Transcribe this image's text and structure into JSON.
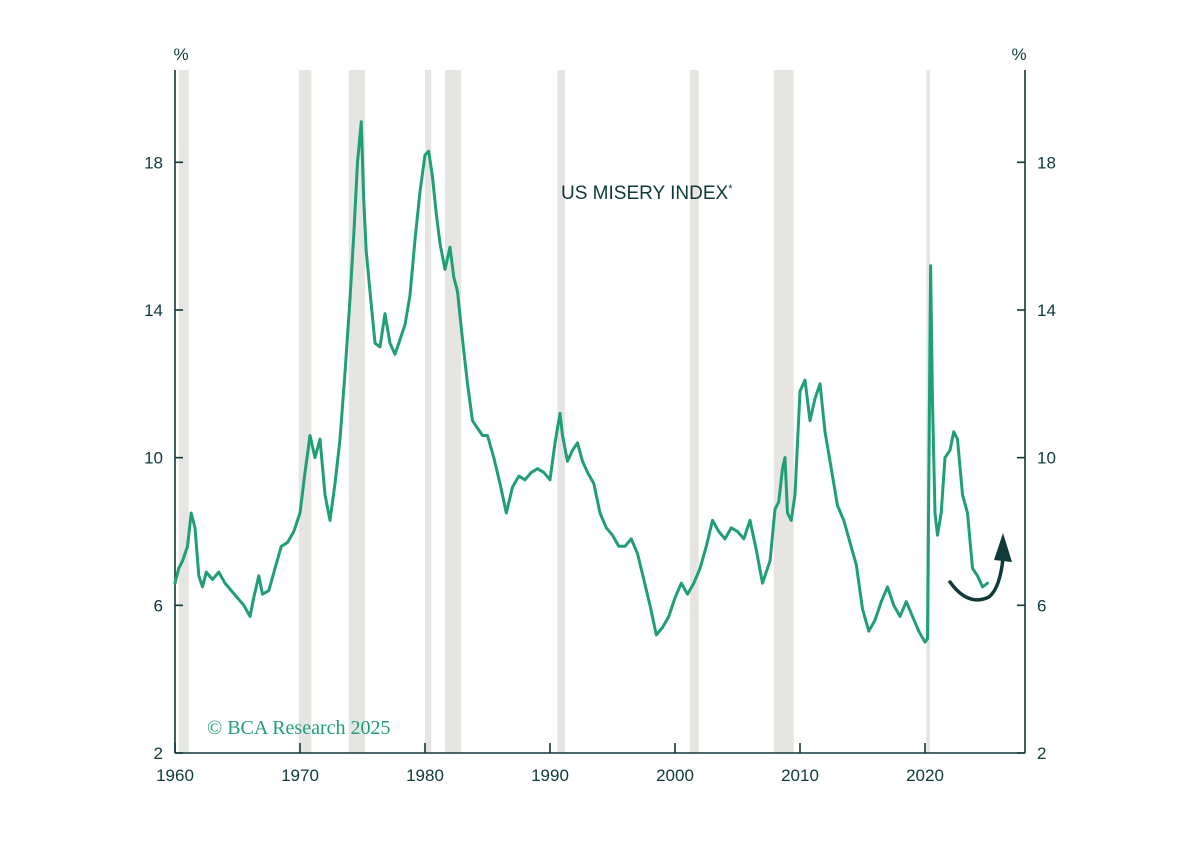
{
  "chart_data": {
    "type": "line",
    "title": "US MISERY INDEX",
    "title_marker": "*",
    "credit": "© BCA Research 2025",
    "left_unit": "%",
    "right_unit": "%",
    "x_ticks": [
      "1960",
      "1970",
      "1980",
      "1990",
      "2000",
      "2010",
      "2020"
    ],
    "y_ticks": [
      "2",
      "6",
      "10",
      "14",
      "18"
    ],
    "xlim": [
      1960,
      2028
    ],
    "ylim": [
      2,
      20.5
    ],
    "grid": false,
    "line_color": "#1f9f78",
    "recession_color": "#e6e5e1",
    "axis_color": "#0e3a3a",
    "arrow_color": "#0e3a3a",
    "recessions": [
      [
        1960.3,
        1961.1
      ],
      [
        1969.9,
        1970.9
      ],
      [
        1973.9,
        1975.2
      ],
      [
        1980.0,
        1980.5
      ],
      [
        1981.6,
        1982.9
      ],
      [
        1990.6,
        1991.2
      ],
      [
        2001.2,
        2001.9
      ],
      [
        2007.9,
        2009.5
      ],
      [
        2020.1,
        2020.4
      ]
    ],
    "series": [
      {
        "x": [
          1960.0,
          1960.3,
          1960.6,
          1961.0,
          1961.3,
          1961.6,
          1961.9,
          1962.2,
          1962.5,
          1963.0,
          1963.5,
          1964.0,
          1964.5,
          1965.0,
          1965.5,
          1966.0,
          1966.3,
          1966.7,
          1967.0,
          1967.5,
          1968.0,
          1968.5,
          1969.0,
          1969.5,
          1970.0,
          1970.4,
          1970.8,
          1971.2,
          1971.6,
          1972.0,
          1972.4,
          1972.8,
          1973.2,
          1973.6,
          1974.0,
          1974.3,
          1974.6,
          1974.9,
          1975.1,
          1975.3,
          1975.6,
          1976.0,
          1976.4,
          1976.8,
          1977.2,
          1977.6,
          1978.0,
          1978.4,
          1978.8,
          1979.2,
          1979.6,
          1980.0,
          1980.3,
          1980.6,
          1980.9,
          1981.2,
          1981.6,
          1982.0,
          1982.3,
          1982.6,
          1983.0,
          1983.4,
          1983.8,
          1984.2,
          1984.6,
          1985.0,
          1985.5,
          1986.0,
          1986.5,
          1987.0,
          1987.5,
          1988.0,
          1988.5,
          1989.0,
          1989.5,
          1990.0,
          1990.4,
          1990.8,
          1991.0,
          1991.4,
          1991.8,
          1992.2,
          1992.6,
          1993.0,
          1993.5,
          1994.0,
          1994.5,
          1995.0,
          1995.5,
          1996.0,
          1996.5,
          1997.0,
          1997.5,
          1998.0,
          1998.5,
          1999.0,
          1999.5,
          2000.0,
          2000.5,
          2001.0,
          2001.5,
          2002.0,
          2002.5,
          2003.0,
          2003.5,
          2004.0,
          2004.5,
          2005.0,
          2005.5,
          2006.0,
          2006.5,
          2007.0,
          2007.3,
          2007.6,
          2008.0,
          2008.3,
          2008.6,
          2008.8,
          2009.0,
          2009.3,
          2009.6,
          2010.0,
          2010.4,
          2010.8,
          2011.2,
          2011.6,
          2012.0,
          2012.5,
          2013.0,
          2013.5,
          2014.0,
          2014.5,
          2015.0,
          2015.5,
          2016.0,
          2016.5,
          2017.0,
          2017.5,
          2018.0,
          2018.5,
          2019.0,
          2019.5,
          2020.0,
          2020.2,
          2020.3,
          2020.45,
          2020.6,
          2020.8,
          2021.0,
          2021.3,
          2021.6,
          2022.0,
          2022.3,
          2022.6,
          2023.0,
          2023.4,
          2023.8,
          2024.2,
          2024.6,
          2025.0
        ],
        "y": [
          6.6,
          7.0,
          7.2,
          7.6,
          8.5,
          8.1,
          6.8,
          6.5,
          6.9,
          6.7,
          6.9,
          6.6,
          6.4,
          6.2,
          6.0,
          5.7,
          6.2,
          6.8,
          6.3,
          6.4,
          7.0,
          7.6,
          7.7,
          8.0,
          8.5,
          9.6,
          10.6,
          10.0,
          10.5,
          9.0,
          8.3,
          9.3,
          10.5,
          12.3,
          14.3,
          16.0,
          18.0,
          19.1,
          17.0,
          15.6,
          14.5,
          13.1,
          13.0,
          13.9,
          13.1,
          12.8,
          13.2,
          13.6,
          14.4,
          15.9,
          17.2,
          18.2,
          18.3,
          17.6,
          16.6,
          15.8,
          15.1,
          15.7,
          14.9,
          14.5,
          13.2,
          12.0,
          11.0,
          10.8,
          10.6,
          10.6,
          10.0,
          9.3,
          8.5,
          9.2,
          9.5,
          9.4,
          9.6,
          9.7,
          9.6,
          9.4,
          10.4,
          11.2,
          10.6,
          9.9,
          10.2,
          10.4,
          9.9,
          9.6,
          9.3,
          8.5,
          8.1,
          7.9,
          7.6,
          7.6,
          7.8,
          7.4,
          6.7,
          6.0,
          5.2,
          5.4,
          5.7,
          6.2,
          6.6,
          6.3,
          6.6,
          7.0,
          7.6,
          8.3,
          8.0,
          7.8,
          8.1,
          8.0,
          7.8,
          8.3,
          7.5,
          6.6,
          6.9,
          7.2,
          8.6,
          8.8,
          9.7,
          10.0,
          8.5,
          8.3,
          9.0,
          11.8,
          12.1,
          11.0,
          11.6,
          12.0,
          10.7,
          9.7,
          8.7,
          8.3,
          7.7,
          7.1,
          5.9,
          5.3,
          5.6,
          6.1,
          6.5,
          6.0,
          5.7,
          6.1,
          5.7,
          5.3,
          5.0,
          5.1,
          9.0,
          15.2,
          11.5,
          8.5,
          7.9,
          8.5,
          10.0,
          10.2,
          10.7,
          10.5,
          9.0,
          8.5,
          7.0,
          6.8,
          6.5,
          6.6
        ],
        "color": "#1f9f78"
      }
    ]
  }
}
